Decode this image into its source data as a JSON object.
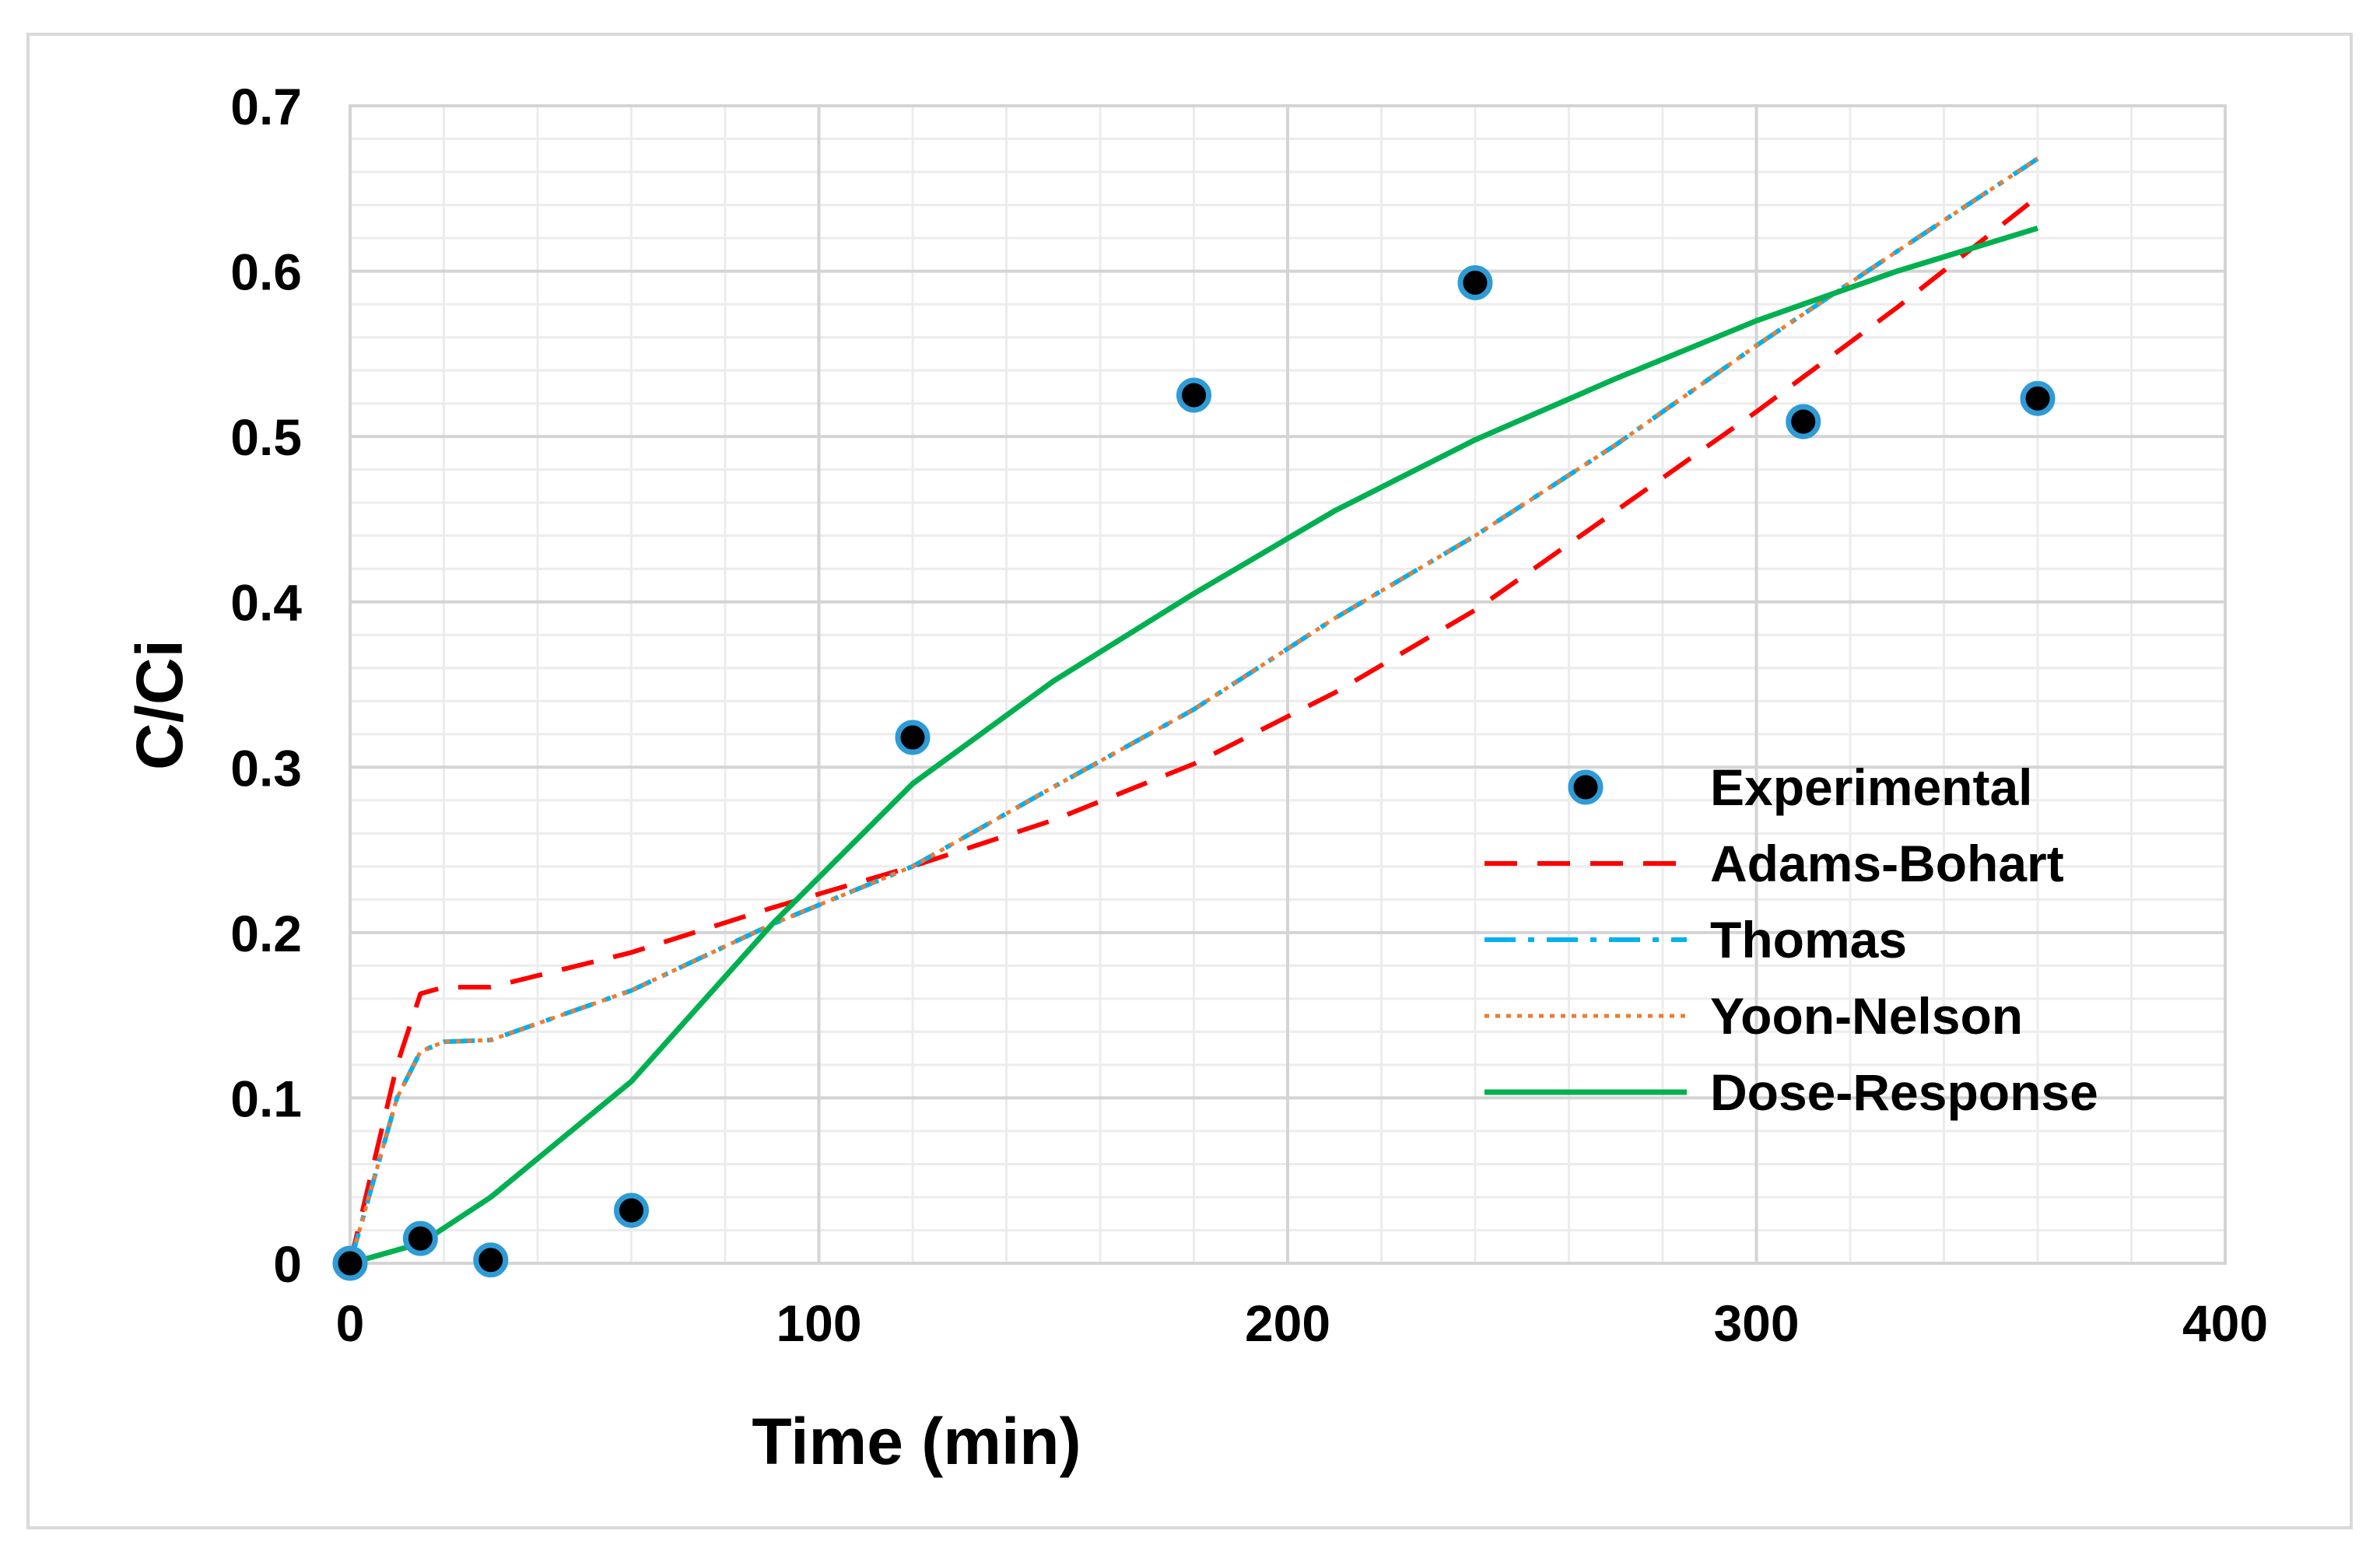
{
  "chart_data": {
    "type": "line",
    "title": "",
    "xlabel": "Time (min)",
    "ylabel": "C/Ci",
    "xlim": [
      0,
      400
    ],
    "ylim": [
      0,
      0.7
    ],
    "x_ticks": [
      "0",
      "100",
      "200",
      "300",
      "400"
    ],
    "y_ticks": [
      "0",
      "0.1",
      "0.2",
      "0.3",
      "0.4",
      "0.5",
      "0.6",
      "0.7"
    ],
    "grid": true,
    "minor_grid": true,
    "legend_position": "right",
    "series": [
      {
        "name": "Experimental",
        "style": "markers",
        "color": "#000000",
        "edge_color": "#2e9bd6",
        "x": [
          0,
          15,
          30,
          60,
          120,
          180,
          240,
          310,
          360
        ],
        "y": [
          0.0,
          0.015,
          0.002,
          0.032,
          0.318,
          0.525,
          0.593,
          0.509,
          0.523
        ]
      },
      {
        "name": "Adams-Bohart",
        "style": "dashed",
        "color": "#ff0000",
        "x": [
          0,
          5,
          10,
          15,
          20,
          30,
          60,
          90,
          120,
          150,
          180,
          210,
          240,
          270,
          300,
          330,
          360
        ],
        "y": [
          0.0,
          0.06,
          0.12,
          0.163,
          0.167,
          0.167,
          0.188,
          0.215,
          0.24,
          0.268,
          0.302,
          0.345,
          0.395,
          0.455,
          0.515,
          0.578,
          0.645
        ]
      },
      {
        "name": "Thomas",
        "style": "dashdot",
        "color": "#00b0f0",
        "x": [
          0,
          5,
          10,
          15,
          20,
          30,
          60,
          90,
          120,
          150,
          180,
          210,
          240,
          270,
          300,
          330,
          360
        ],
        "y": [
          0.0,
          0.05,
          0.1,
          0.128,
          0.134,
          0.135,
          0.165,
          0.205,
          0.24,
          0.288,
          0.335,
          0.39,
          0.44,
          0.495,
          0.555,
          0.612,
          0.668
        ]
      },
      {
        "name": "Yoon-Nelson",
        "style": "dotted",
        "color": "#ed7d31",
        "x": [
          0,
          5,
          10,
          15,
          20,
          30,
          60,
          90,
          120,
          150,
          180,
          210,
          240,
          270,
          300,
          330,
          360
        ],
        "y": [
          0.0,
          0.05,
          0.1,
          0.128,
          0.134,
          0.135,
          0.165,
          0.205,
          0.24,
          0.288,
          0.335,
          0.39,
          0.44,
          0.495,
          0.555,
          0.612,
          0.668
        ]
      },
      {
        "name": "Dose-Response",
        "style": "solid",
        "color": "#00b050",
        "x": [
          0,
          15,
          30,
          60,
          90,
          120,
          150,
          180,
          210,
          240,
          270,
          300,
          330,
          360
        ],
        "y": [
          0.0,
          0.012,
          0.04,
          0.11,
          0.205,
          0.29,
          0.352,
          0.405,
          0.455,
          0.498,
          0.535,
          0.57,
          0.6,
          0.626
        ]
      }
    ]
  }
}
